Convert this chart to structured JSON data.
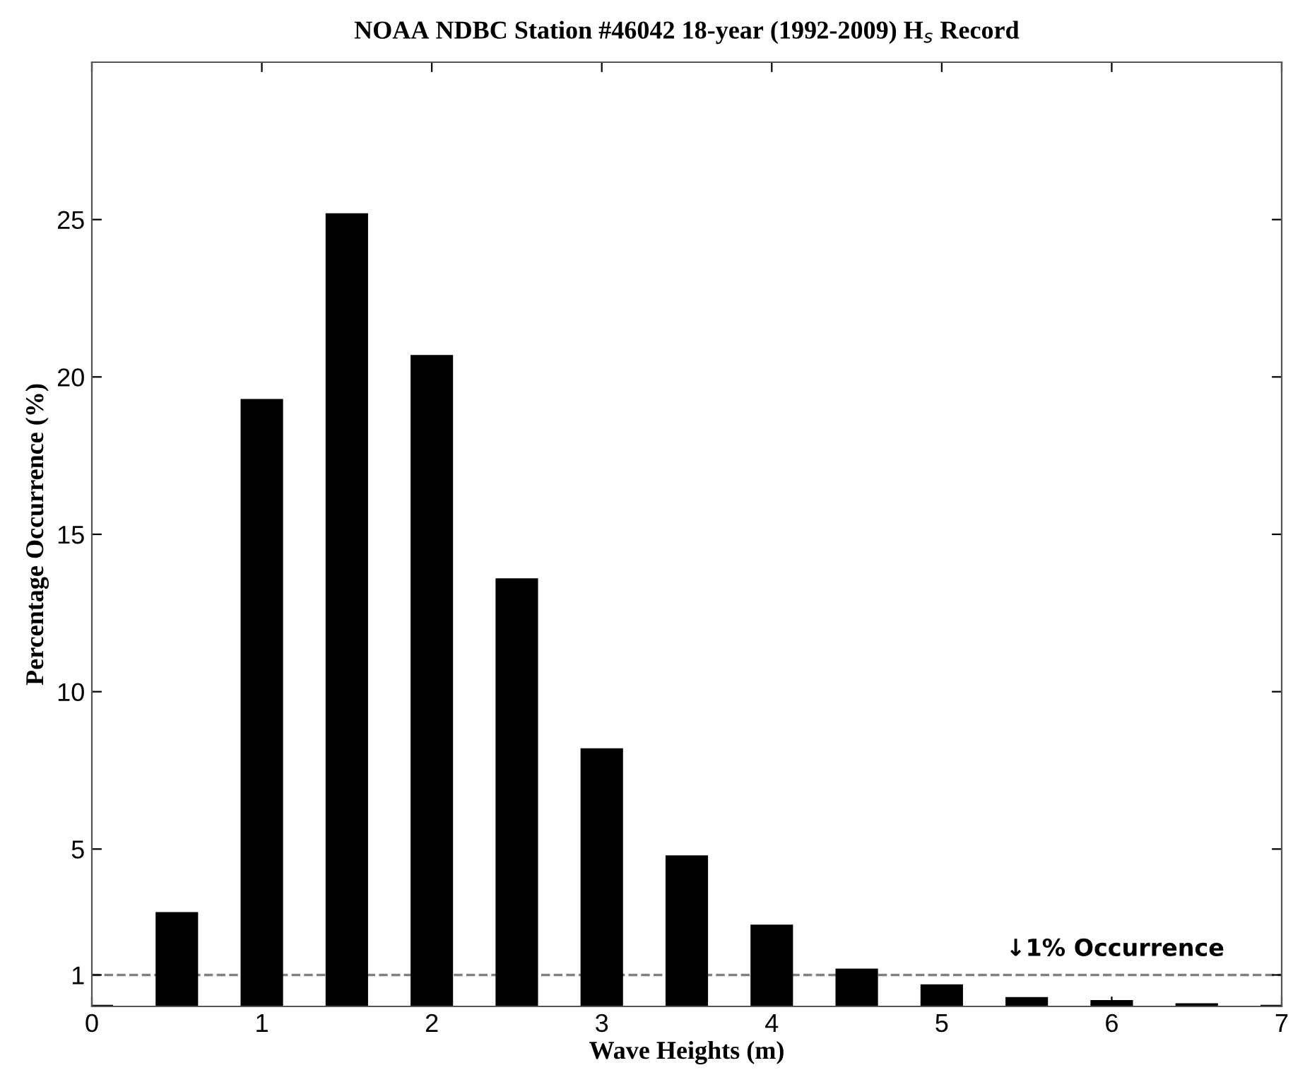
{
  "chart_data": {
    "type": "bar",
    "title": "NOAA NDBC Station #46042 18-year (1992-2009) H$_{s}$ Record",
    "xlabel": "Wave Heights (m)",
    "ylabel": "Percentage Occurrence (%)",
    "x": [
      0,
      0.5,
      1,
      1.5,
      2,
      2.5,
      3,
      3.5,
      4,
      4.5,
      5,
      5.5,
      6,
      6.5,
      7
    ],
    "values": [
      0.05,
      3.0,
      19.3,
      25.2,
      20.7,
      13.6,
      8.2,
      4.8,
      2.6,
      1.2,
      0.7,
      0.3,
      0.2,
      0.1,
      0.05
    ],
    "color": "#000000",
    "xlim": [
      0,
      7
    ],
    "xticks": [
      0,
      1,
      2,
      3,
      4,
      5,
      6,
      7
    ],
    "ylim": [
      0,
      30
    ],
    "yticks": [
      1,
      5,
      10,
      15,
      20,
      25
    ],
    "ref_lines": [
      {
        "axis": "y",
        "value": 1,
        "label": "↓1% Occurrence",
        "color": "#808080",
        "line_style": "dashed"
      }
    ],
    "grid": false,
    "legend": false
  }
}
